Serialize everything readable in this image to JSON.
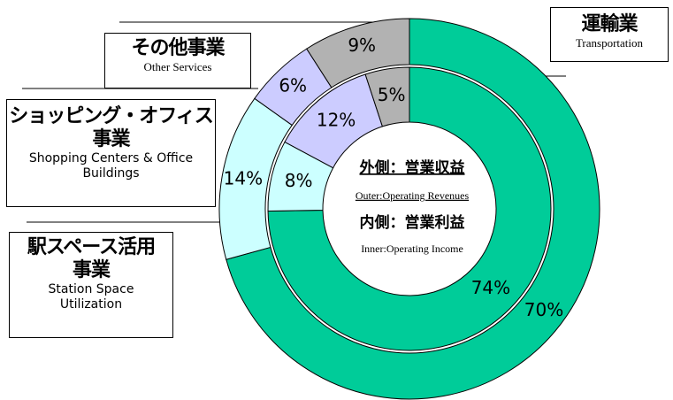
{
  "chart_data": {
    "type": "nested-donut",
    "categories": [
      {
        "ja": [
          "運輸業"
        ],
        "en": [
          "Transportation"
        ]
      },
      {
        "ja": [
          "駅スペース活用",
          "事業"
        ],
        "en": [
          "Station Space",
          "Utilization"
        ]
      },
      {
        "ja": [
          "ショッピング・オフィス",
          "事業"
        ],
        "en": [
          "Shopping Centers & Office",
          "Buildings"
        ]
      },
      {
        "ja": [
          "その他事業"
        ],
        "en": [
          "Other Services"
        ]
      }
    ],
    "colors": [
      "#00cc99",
      "#ccffff",
      "#ccccff",
      "#b2b2b2"
    ],
    "series": [
      {
        "values": [
          70,
          14,
          6,
          9
        ],
        "value_labels": [
          "70%",
          "14%",
          "6%",
          "9%"
        ]
      },
      {
        "values": [
          74,
          8,
          12,
          5
        ],
        "value_labels": [
          "74%",
          "8%",
          "12%",
          "5%"
        ]
      }
    ],
    "center": {
      "outer_ja": "外側：営業収益",
      "outer_en": "Outer:Operating Revenues",
      "inner_ja": "内側：営業利益",
      "inner_en": "Inner:Operating Income"
    }
  }
}
